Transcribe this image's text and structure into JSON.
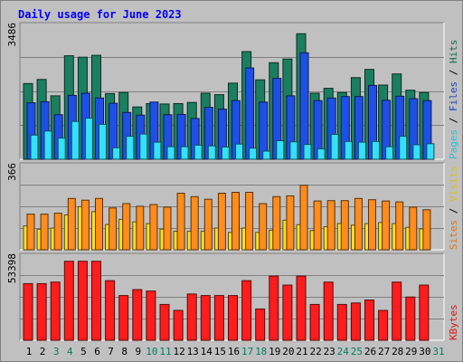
{
  "chart_data": {
    "type": "bar",
    "title": "Daily usage for June 2023",
    "categories": [
      "1",
      "2",
      "3",
      "4",
      "5",
      "6",
      "7",
      "8",
      "9",
      "10",
      "11",
      "12",
      "13",
      "14",
      "15",
      "16",
      "17",
      "18",
      "19",
      "20",
      "21",
      "22",
      "23",
      "24",
      "25",
      "26",
      "27",
      "28",
      "29",
      "30",
      "31"
    ],
    "weekend_days": [
      "3",
      "4",
      "10",
      "11",
      "17",
      "18",
      "24",
      "25",
      "31"
    ],
    "panels": [
      {
        "max_label": "3486",
        "ymax": 3486,
        "legend": [
          "Pages",
          "Files",
          "Hits"
        ],
        "series": [
          {
            "name": "Hits",
            "color": "#1b7f5f",
            "values": [
              2040,
              2150,
              1710,
              2790,
              2750,
              2800,
              1770,
              1800,
              1410,
              1500,
              1490,
              1500,
              1530,
              1780,
              1740,
              2050,
              2900,
              2140,
              2600,
              2700,
              3380,
              1780,
              1910,
              1800,
              2200,
              2420,
              2000,
              2300,
              1860,
              1800,
              null
            ]
          },
          {
            "name": "Files",
            "color": "#1e50e6",
            "values": [
              1520,
              1550,
              1200,
              1720,
              1780,
              1650,
              1510,
              1260,
              1190,
              1540,
              1200,
              1210,
              1100,
              1400,
              1350,
              1580,
              2460,
              1540,
              2180,
              1710,
              2870,
              1580,
              1650,
              1690,
              1690,
              1990,
              1590,
              1700,
              1630,
              1580,
              null
            ]
          },
          {
            "name": "Pages",
            "color": "#33e0ff",
            "values": [
              650,
              760,
              570,
              1020,
              1110,
              940,
              310,
              620,
              680,
              460,
              340,
              340,
              380,
              360,
              330,
              410,
              300,
              220,
              500,
              470,
              400,
              280,
              670,
              480,
              460,
              480,
              340,
              620,
              390,
              420,
              null
            ]
          }
        ]
      },
      {
        "max_label": "366",
        "ymax": 366,
        "legend": [
          "Sites",
          "Visits"
        ],
        "series": [
          {
            "name": "Visits",
            "color": "#ffe01c",
            "values": [
              110,
              95,
              100,
              160,
              198,
              175,
              116,
              140,
              128,
              120,
              95,
              85,
              85,
              85,
              100,
              80,
              100,
              80,
              90,
              136,
              115,
              88,
              106,
              121,
              113,
              120,
              125,
              120,
              103,
              96,
              null
            ]
          },
          {
            "name": "Sites",
            "color": "#ff8c1c",
            "values": [
              164,
              164,
              168,
              236,
              228,
              236,
              192,
              212,
              200,
              208,
              196,
              260,
              244,
              232,
              260,
              264,
              264,
              212,
              244,
              248,
              296,
              224,
              226,
              226,
              236,
              230,
              224,
              220,
              196,
              184,
              null
            ]
          }
        ]
      },
      {
        "max_label": "53398",
        "ymax": 53398,
        "legend": [
          "KBytes"
        ],
        "series": [
          {
            "name": "KBytes",
            "color": "#ff1c1c",
            "values": [
              38000,
              38000,
              39000,
              53000,
              53000,
              53000,
              40000,
              30000,
              34000,
              33000,
              24000,
              20000,
              31000,
              30000,
              30000,
              30000,
              40000,
              21000,
              43000,
              37000,
              43000,
              24000,
              39000,
              24000,
              25000,
              27000,
              20000,
              39000,
              29000,
              37000,
              null
            ]
          }
        ]
      }
    ]
  },
  "colors": {
    "background": "#c0c0c0",
    "title": "#0000ff",
    "weekday_label": "#000000",
    "weekend_label": "#00805f"
  }
}
